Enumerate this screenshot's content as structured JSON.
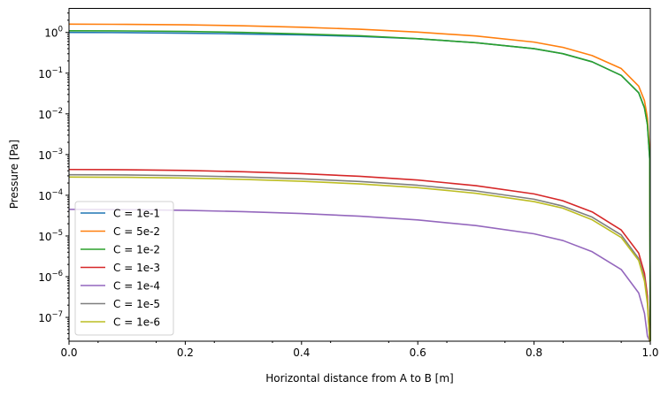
{
  "chart_data": {
    "type": "line",
    "title": "",
    "xlabel": "Horizontal distance from A to B [m]",
    "ylabel": "Pressure [Pa]",
    "xscale": "linear",
    "yscale": "log",
    "xlim": [
      0,
      1.0
    ],
    "ylim": [
      2.6e-08,
      3.9
    ],
    "xticks": [
      0.0,
      0.2,
      0.4,
      0.6,
      0.8,
      1.0
    ],
    "xtick_labels": [
      "0.0",
      "0.2",
      "0.4",
      "0.6",
      "0.8",
      "1.0"
    ],
    "yticks": [
      1,
      0.1,
      0.01,
      0.001,
      0.0001,
      1e-05,
      1e-06,
      1e-07
    ],
    "ytick_labels": [
      {
        "base": "10",
        "exp": "0"
      },
      {
        "base": "10",
        "exp": "−1"
      },
      {
        "base": "10",
        "exp": "−2"
      },
      {
        "base": "10",
        "exp": "−3"
      },
      {
        "base": "10",
        "exp": "−4"
      },
      {
        "base": "10",
        "exp": "−5"
      },
      {
        "base": "10",
        "exp": "−6"
      },
      {
        "base": "10",
        "exp": "−7"
      }
    ],
    "grid": false,
    "legend_position": "lower-left",
    "x": [
      0,
      0.1,
      0.2,
      0.3,
      0.4,
      0.5,
      0.6,
      0.7,
      0.8,
      0.85,
      0.9,
      0.95,
      0.98,
      0.99,
      0.995,
      0.999,
      1.0
    ],
    "series": [
      {
        "name": "C = 1e-1",
        "color": "#1f77b4",
        "values": [
          1.0,
          0.99,
          0.96,
          0.92,
          0.87,
          0.8,
          0.7,
          0.56,
          0.4,
          0.3,
          0.19,
          0.088,
          0.033,
          0.014,
          0.0055,
          0.00077,
          0
        ]
      },
      {
        "name": "C = 5e-2",
        "color": "#ff7f0e",
        "values": [
          1.6,
          1.58,
          1.54,
          1.46,
          1.34,
          1.2,
          1.02,
          0.82,
          0.58,
          0.43,
          0.27,
          0.13,
          0.048,
          0.021,
          0.008,
          0.0011,
          0
        ]
      },
      {
        "name": "C = 1e-2",
        "color": "#2ca02c",
        "values": [
          1.1,
          1.09,
          1.06,
          1.0,
          0.92,
          0.83,
          0.7,
          0.56,
          0.4,
          0.3,
          0.19,
          0.088,
          0.033,
          0.014,
          0.0055,
          0.00077,
          0
        ]
      },
      {
        "name": "C = 1e-3",
        "color": "#d62728",
        "values": [
          0.00043,
          0.000424,
          0.000407,
          0.000378,
          0.00034,
          0.000292,
          0.000237,
          0.000172,
          0.000108,
          7.3e-05,
          3.9e-05,
          1.4e-05,
          3.8e-06,
          1.2e-06,
          3.4e-07,
          2.4e-08,
          0
        ]
      },
      {
        "name": "C = 1e-4",
        "color": "#9467bd",
        "values": [
          4.5e-05,
          4.44e-05,
          4.26e-05,
          3.96e-05,
          3.56e-05,
          3.06e-05,
          2.48e-05,
          1.8e-05,
          1.13e-05,
          7.7e-06,
          4.1e-06,
          1.5e-06,
          4e-07,
          1.26e-07,
          3.5e-08,
          2.5e-09,
          0
        ]
      },
      {
        "name": "C = 1e-5",
        "color": "#7f7f7f",
        "values": [
          0.00032,
          0.000316,
          0.000303,
          0.000282,
          0.000253,
          0.000218,
          0.000176,
          0.000128,
          8e-05,
          5.4e-05,
          2.9e-05,
          1.06e-05,
          2.8e-06,
          9e-07,
          2.5e-07,
          1.8e-08,
          0
        ]
      },
      {
        "name": "C = 1e-6",
        "color": "#bcbd22",
        "values": [
          0.00028,
          0.000276,
          0.000265,
          0.000246,
          0.000221,
          0.00019,
          0.000154,
          0.000112,
          7e-05,
          4.8e-05,
          2.5e-05,
          9.2e-06,
          2.5e-06,
          7.8e-07,
          2.2e-07,
          1.6e-08,
          0
        ]
      }
    ]
  }
}
